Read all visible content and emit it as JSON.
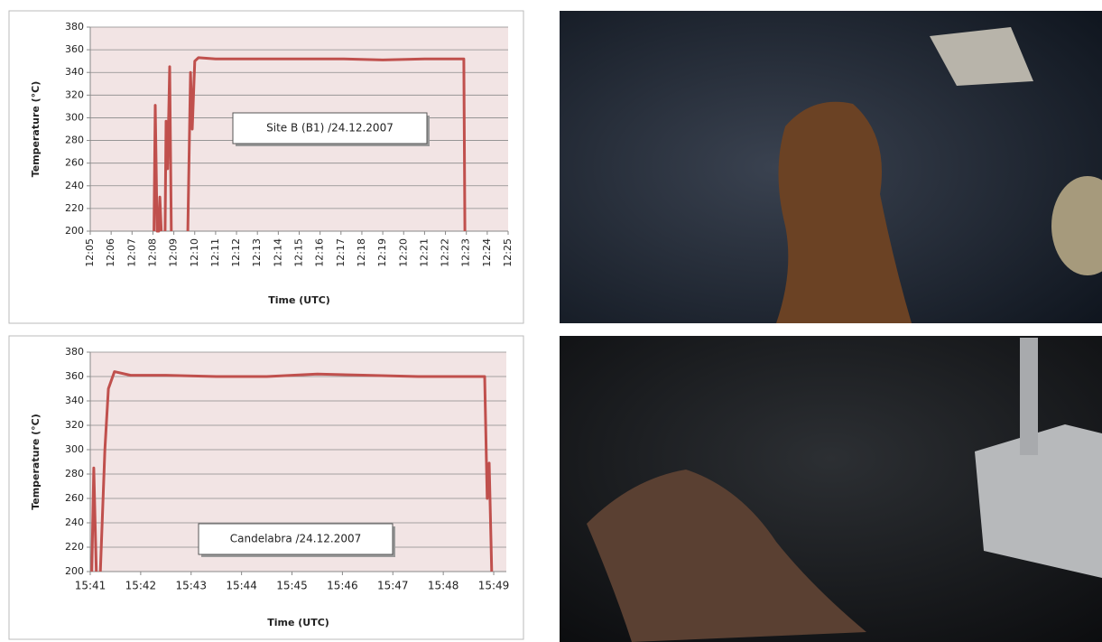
{
  "chart_data": [
    {
      "type": "line",
      "annotation": "Site B (B1) /24.12.2007",
      "x_label": "Time (UTC)",
      "y_label": "Temperature (°C)",
      "xlim": [
        725,
        745
      ],
      "xticks": [
        {
          "value": 725,
          "label": "12:05"
        },
        {
          "value": 726,
          "label": "12:06"
        },
        {
          "value": 727,
          "label": "12:07"
        },
        {
          "value": 728,
          "label": "12:08"
        },
        {
          "value": 729,
          "label": "12:09"
        },
        {
          "value": 730,
          "label": "12:10"
        },
        {
          "value": 731,
          "label": "12:11"
        },
        {
          "value": 732,
          "label": "12:12"
        },
        {
          "value": 733,
          "label": "12:13"
        },
        {
          "value": 734,
          "label": "12:14"
        },
        {
          "value": 735,
          "label": "12:15"
        },
        {
          "value": 736,
          "label": "12:16"
        },
        {
          "value": 737,
          "label": "12:17"
        },
        {
          "value": 738,
          "label": "12:18"
        },
        {
          "value": 739,
          "label": "12:19"
        },
        {
          "value": 740,
          "label": "12:20"
        },
        {
          "value": 741,
          "label": "12:21"
        },
        {
          "value": 742,
          "label": "12:22"
        },
        {
          "value": 743,
          "label": "12:23"
        },
        {
          "value": 744,
          "label": "12:24"
        },
        {
          "value": 745,
          "label": "12:25"
        }
      ],
      "ylim": [
        200,
        380
      ],
      "yticks": [
        200,
        220,
        240,
        260,
        280,
        300,
        320,
        340,
        360,
        380
      ],
      "grid": true,
      "series": [
        {
          "color": "#c0504d",
          "x": [
            728.05,
            728.11,
            728.2,
            728.28,
            728.33,
            728.4,
            null,
            728.58,
            728.63,
            728.7,
            728.8,
            728.88,
            null,
            729.67,
            729.8,
            729.88,
            730.0,
            730.18,
            731,
            733,
            735,
            737,
            739,
            741,
            742.88,
            742.93
          ],
          "values": [
            200,
            311,
            200,
            200,
            230,
            200,
            null,
            200,
            297,
            255,
            345,
            200,
            null,
            200,
            340,
            290,
            350,
            353,
            352,
            352,
            352,
            352,
            351,
            352,
            352,
            200
          ]
        }
      ]
    },
    {
      "type": "line",
      "annotation": "Candelabra /24.12.2007",
      "x_label": "Time (UTC)",
      "y_label": "Temperature (°C)",
      "xlim": [
        941,
        949.25
      ],
      "xticks": [
        {
          "value": 941,
          "label": "15:41"
        },
        {
          "value": 942,
          "label": "15:42"
        },
        {
          "value": 943,
          "label": "15:43"
        },
        {
          "value": 944,
          "label": "15:44"
        },
        {
          "value": 945,
          "label": "15:45"
        },
        {
          "value": 946,
          "label": "15:46"
        },
        {
          "value": 947,
          "label": "15:47"
        },
        {
          "value": 948,
          "label": "15:48"
        },
        {
          "value": 949,
          "label": "15:49"
        }
      ],
      "ylim": [
        200,
        380
      ],
      "yticks": [
        200,
        220,
        240,
        260,
        280,
        300,
        320,
        340,
        360,
        380
      ],
      "grid": true,
      "series": [
        {
          "color": "#c0504d",
          "x": [
            941.03,
            941.07,
            941.12,
            null,
            941.2,
            941.29,
            941.36,
            941.48,
            941.8,
            942.5,
            943.5,
            944.5,
            945.5,
            946.5,
            947.5,
            948.5,
            948.82,
            948.87,
            948.91,
            948.96
          ],
          "values": [
            200,
            285,
            200,
            null,
            200,
            300,
            350,
            364,
            361,
            361,
            360,
            360,
            362,
            361,
            360,
            360,
            360,
            260,
            289,
            200
          ]
        }
      ]
    }
  ]
}
